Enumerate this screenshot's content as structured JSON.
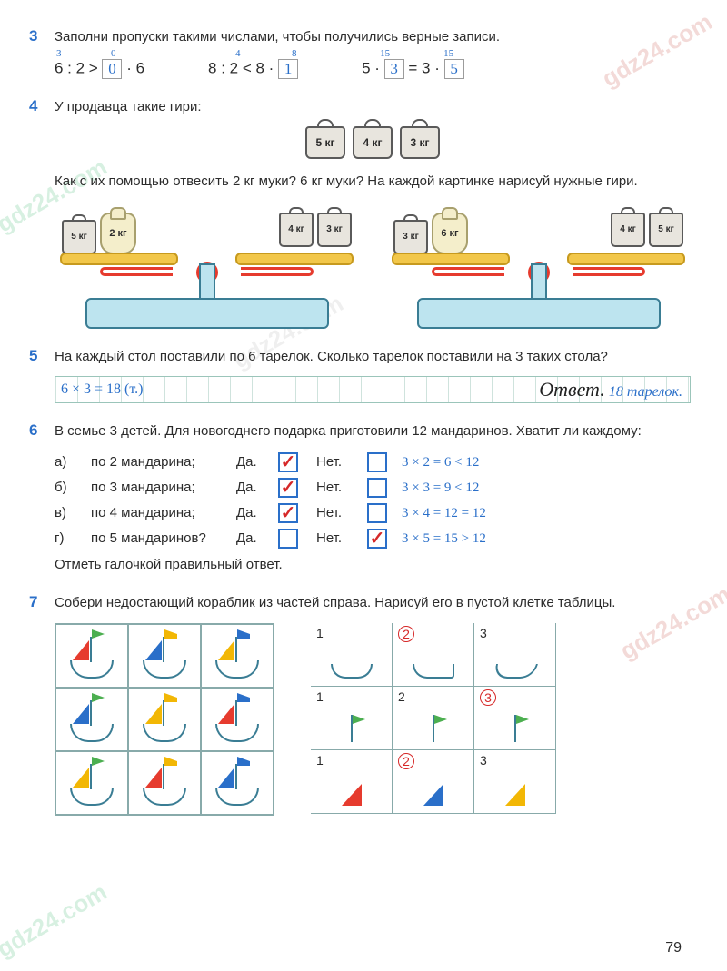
{
  "page_number": "79",
  "watermark": "gdz24.com",
  "task3": {
    "num": "3",
    "text": "Заполни пропуски такими числами, чтобы получились верные записи.",
    "exprs": {
      "a_left": "6 : 2 >",
      "a_above1": "3",
      "a_box": "0",
      "a_above2": "0",
      "a_right": "· 6",
      "b_left": "8 : 2 < 8 ·",
      "b_above1": "4",
      "b_box": "1",
      "b_above2": "8",
      "c_left": "5 ·",
      "c_box1": "3",
      "c_above1": "15",
      "c_mid": "= 3 ·",
      "c_box2": "5",
      "c_above2": "15"
    }
  },
  "task4": {
    "num": "4",
    "text1": "У продавца такие гири:",
    "weights": [
      "5 кг",
      "4 кг",
      "3 кг"
    ],
    "text2": "Как с их помощью отвесить 2 кг муки? 6 кг муки? На каждой картинке нарисуй нужные гири.",
    "scale1": {
      "left": [
        "5 кг",
        "2 кг"
      ],
      "right": [
        "4 кг",
        "3 кг"
      ]
    },
    "scale2": {
      "left": [
        "3 кг",
        "6 кг"
      ],
      "right": [
        "4 кг",
        "5 кг"
      ]
    }
  },
  "task5": {
    "num": "5",
    "text": "На каждый стол поставили по 6 тарелок. Сколько тарелок поставили на 3 таких стола?",
    "calc": "6 × 3 = 18 (т.)",
    "answer_label": "Ответ.",
    "answer": "18 тарелок."
  },
  "task6": {
    "num": "6",
    "text": "В семье 3 детей. Для новогоднего подарка приготовили 12 мандаринов. Хватит ли каждому:",
    "rows": [
      {
        "letter": "а)",
        "label": "по 2 мандарина;",
        "da": "Да.",
        "da_checked": true,
        "net": "Нет.",
        "net_checked": false,
        "calc": "3 × 2 = 6 < 12"
      },
      {
        "letter": "б)",
        "label": "по 3 мандарина;",
        "da": "Да.",
        "da_checked": true,
        "net": "Нет.",
        "net_checked": false,
        "calc": "3 × 3 = 9 < 12"
      },
      {
        "letter": "в)",
        "label": "по 4 мандарина;",
        "da": "Да.",
        "da_checked": true,
        "net": "Нет.",
        "net_checked": false,
        "calc": "3 × 4 = 12 = 12"
      },
      {
        "letter": "г)",
        "label": "по 5 мандаринов?",
        "da": "Да.",
        "da_checked": false,
        "net": "Нет.",
        "net_checked": true,
        "calc": "3 × 5 = 15 > 12"
      }
    ],
    "footer": "Отметь галочкой правильный ответ."
  },
  "task7": {
    "num": "7",
    "text": "Собери недостающий кораблик из частей справа. Нарисуй его в пустой клетке таблицы.",
    "left_grid": {
      "sails": [
        "red",
        "blue",
        "yellow",
        "blue",
        "yellow",
        "red",
        "yellow",
        "red",
        "blue"
      ],
      "flags": [
        "green",
        "yellow",
        "blue",
        "green",
        "yellow",
        "blue",
        "green",
        "yellow",
        "blue"
      ],
      "boats": [
        "b1",
        "b2",
        "b3",
        "b3",
        "b1",
        "b2",
        "b2",
        ";b3",
        "b1"
      ]
    },
    "right_grid": {
      "row1": [
        {
          "num": "1",
          "circled": false,
          "type": "hull",
          "variant": "h1"
        },
        {
          "num": "2",
          "circled": true,
          "type": "hull",
          "variant": "h2"
        },
        {
          "num": "3",
          "circled": false,
          "type": "hull",
          "variant": "h3"
        }
      ],
      "row2": [
        {
          "num": "1",
          "circled": false,
          "type": "flag"
        },
        {
          "num": "2",
          "circled": false,
          "type": "flag"
        },
        {
          "num": "3",
          "circled": true,
          "type": "flag"
        }
      ],
      "row3": [
        {
          "num": "1",
          "circled": false,
          "type": "sail",
          "color": "red"
        },
        {
          "num": "2",
          "circled": true,
          "type": "sail",
          "color": "blue"
        },
        {
          "num": "3",
          "circled": false,
          "type": "sail",
          "color": "yellow"
        }
      ]
    }
  },
  "colors": {
    "task_num": "#2a6fc9",
    "answer_hand": "#2a6fc9",
    "check_mark": "#d62828",
    "red": "#e63b2e",
    "blue": "#2a6fc9",
    "yellow": "#f2b705",
    "green": "#4caf50",
    "cyan_base": "#bde4ef"
  }
}
